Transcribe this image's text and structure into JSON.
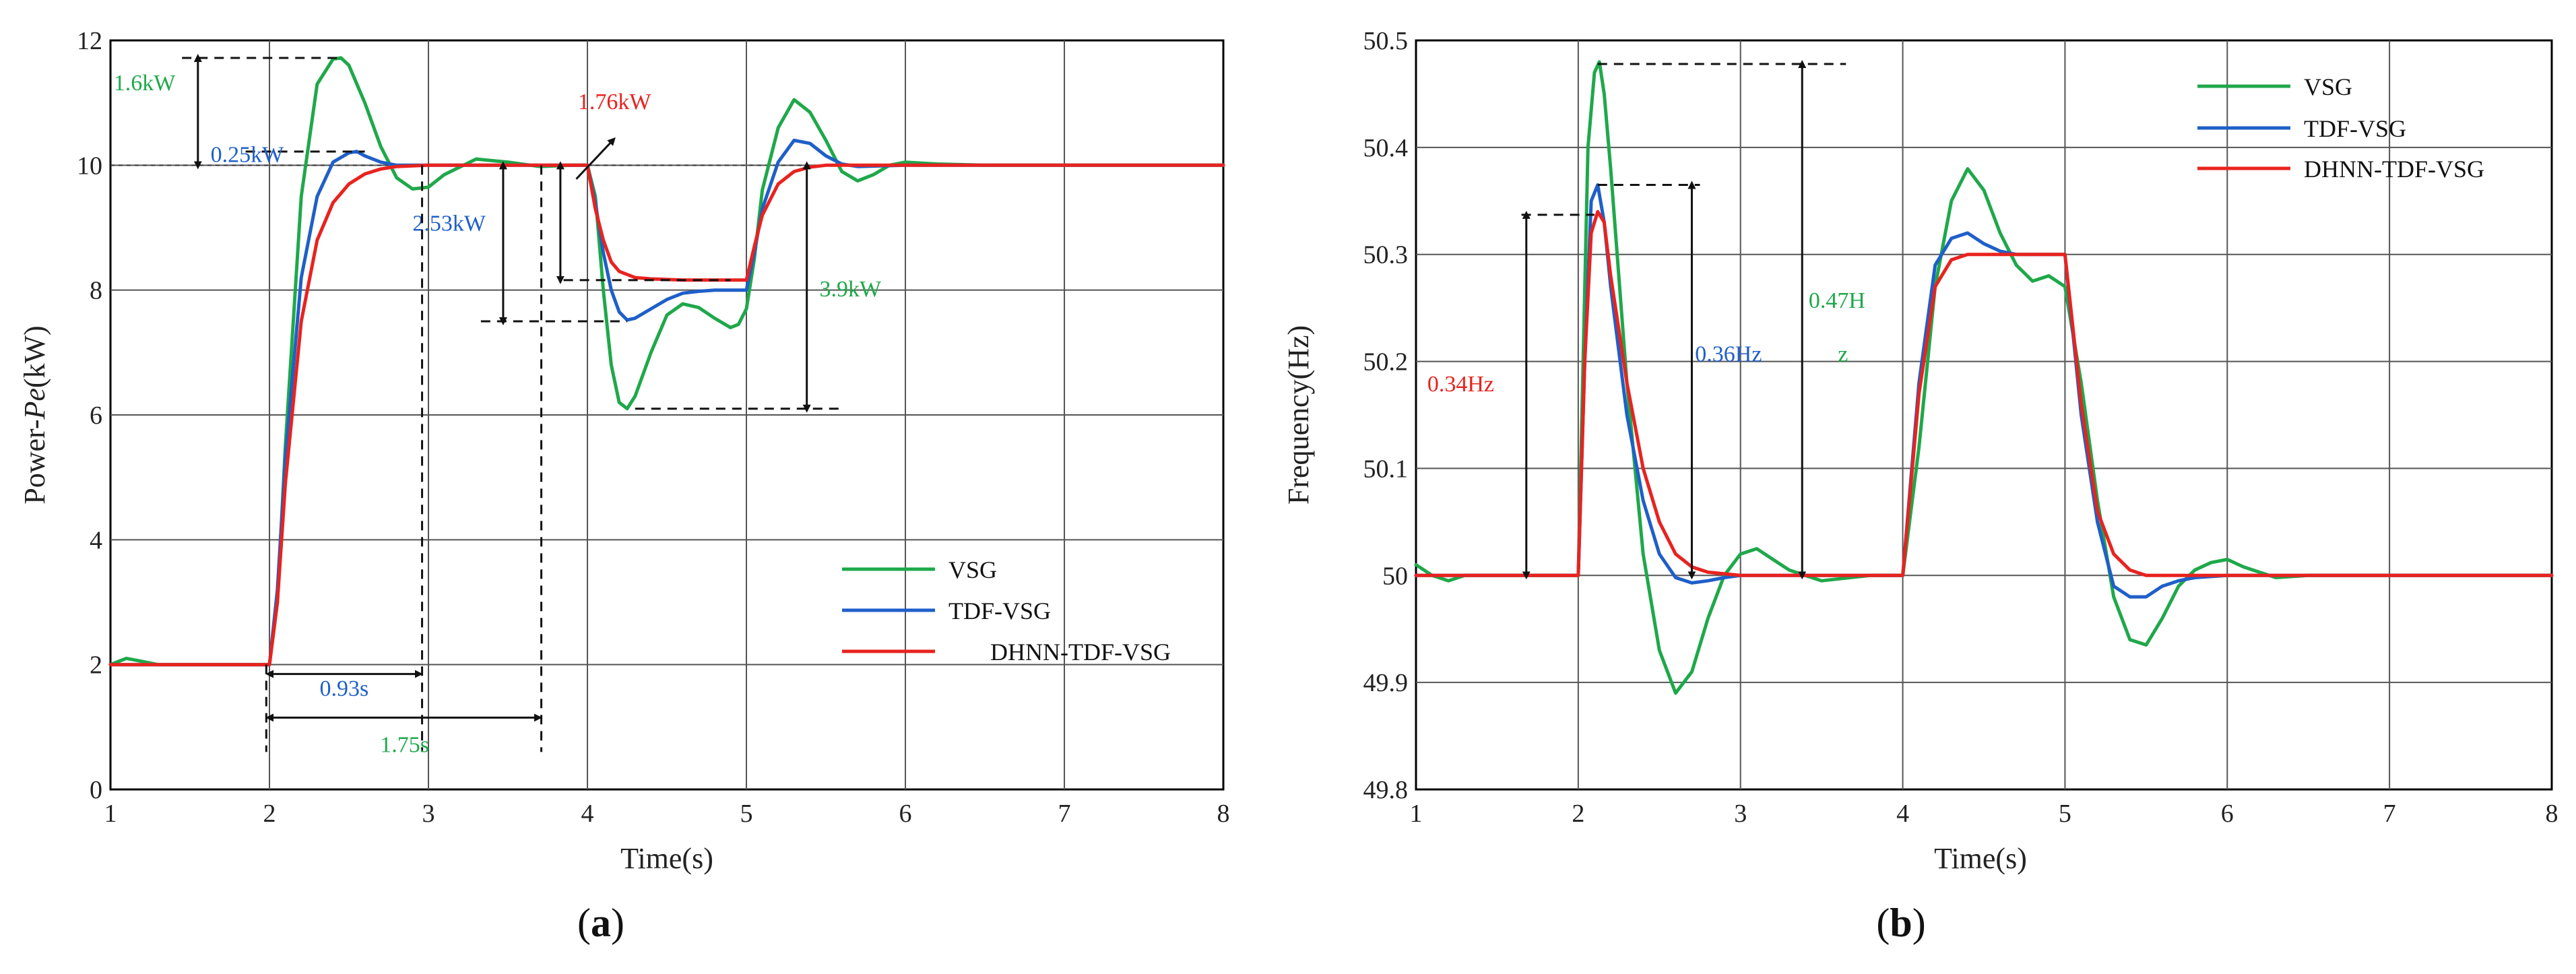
{
  "chart_data": [
    {
      "type": "line",
      "panel_label": "(a)",
      "label_letter": "a",
      "xlabel": "Time(s)",
      "ylabel": "Power-Pe(kW)",
      "ylabel_prefix": "Power-",
      "ylabel_italic": "Pe",
      "ylabel_suffix": "(kW)",
      "xlim": [
        1,
        8
      ],
      "ylim": [
        0,
        12
      ],
      "xticks": [
        1,
        2,
        3,
        4,
        5,
        6,
        7,
        8
      ],
      "yticks": [
        0,
        2,
        4,
        6,
        8,
        10,
        12
      ],
      "grid": true,
      "legend": "bottom-right",
      "series": [
        {
          "name": "VSG",
          "color": "#1fa84a",
          "x": [
            1,
            1.05,
            1.1,
            1.2,
            1.3,
            1.5,
            1.8,
            2,
            2.05,
            2.1,
            2.2,
            2.3,
            2.4,
            2.45,
            2.5,
            2.6,
            2.7,
            2.8,
            2.9,
            3,
            3.1,
            3.3,
            3.5,
            3.7,
            3.9,
            4,
            4.05,
            4.1,
            4.15,
            4.2,
            4.25,
            4.3,
            4.4,
            4.5,
            4.6,
            4.7,
            4.8,
            4.9,
            4.95,
            5,
            5.05,
            5.1,
            5.2,
            5.3,
            5.4,
            5.5,
            5.6,
            5.7,
            5.8,
            5.9,
            6,
            6.2,
            6.5,
            7,
            7.5,
            8
          ],
          "y": [
            2,
            2.05,
            2.1,
            2.05,
            2,
            2,
            2,
            2,
            3,
            5.5,
            9.5,
            11.3,
            11.7,
            11.72,
            11.6,
            11,
            10.3,
            9.8,
            9.62,
            9.65,
            9.85,
            10.1,
            10.05,
            9.98,
            10,
            10,
            9.5,
            8,
            6.8,
            6.2,
            6.1,
            6.3,
            7,
            7.6,
            7.78,
            7.72,
            7.55,
            7.4,
            7.45,
            7.7,
            8.5,
            9.6,
            10.6,
            11.05,
            10.85,
            10.4,
            9.9,
            9.75,
            9.85,
            10,
            10.05,
            10.02,
            10,
            10,
            10,
            10
          ]
        },
        {
          "name": "TDF-VSG",
          "color": "#1f5fc8",
          "x": [
            1,
            1.5,
            2,
            2.05,
            2.1,
            2.2,
            2.3,
            2.4,
            2.5,
            2.55,
            2.6,
            2.7,
            2.8,
            2.9,
            3,
            3.5,
            4,
            4.05,
            4.1,
            4.15,
            4.2,
            4.25,
            4.3,
            4.4,
            4.5,
            4.6,
            4.7,
            4.8,
            4.9,
            5,
            5.05,
            5.1,
            5.2,
            5.3,
            5.4,
            5.5,
            5.6,
            5.7,
            6,
            7,
            8
          ],
          "y": [
            2,
            2,
            2,
            3.2,
            5.3,
            8.2,
            9.5,
            10.05,
            10.2,
            10.22,
            10.15,
            10.05,
            10,
            10,
            10,
            10,
            10,
            9.4,
            8.6,
            8.0,
            7.65,
            7.52,
            7.55,
            7.7,
            7.85,
            7.95,
            7.98,
            8,
            8,
            8,
            8.6,
            9.3,
            10.05,
            10.4,
            10.35,
            10.15,
            10.02,
            9.98,
            10,
            10,
            10
          ]
        },
        {
          "name": "DHNN-TDF-VSG",
          "color": "#e8231f",
          "x": [
            1,
            1.5,
            2,
            2.05,
            2.1,
            2.2,
            2.3,
            2.4,
            2.5,
            2.6,
            2.7,
            2.8,
            3,
            3.5,
            4,
            4.05,
            4.1,
            4.15,
            4.2,
            4.3,
            4.4,
            4.6,
            4.8,
            5,
            5.05,
            5.1,
            5.2,
            5.3,
            5.4,
            5.5,
            6,
            7,
            8
          ],
          "y": [
            2,
            2,
            2,
            3.0,
            4.9,
            7.5,
            8.8,
            9.4,
            9.7,
            9.86,
            9.94,
            9.98,
            10,
            10,
            10,
            9.3,
            8.8,
            8.45,
            8.3,
            8.2,
            8.18,
            8.16,
            8.16,
            8.16,
            8.7,
            9.2,
            9.7,
            9.9,
            9.97,
            10,
            10,
            10,
            10
          ]
        }
      ],
      "annotations": [
        {
          "text": "1.6kW",
          "color": "#1fa84a"
        },
        {
          "text": "0.25kW",
          "color": "#1f5fc8"
        },
        {
          "text": "2.53kW",
          "color": "#1f5fc8"
        },
        {
          "text": "1.76kW",
          "color": "#e8231f"
        },
        {
          "text": "3.9kW",
          "color": "#1fa84a"
        },
        {
          "text": "0.93s",
          "color": "#1f5fc8"
        },
        {
          "text": "1.75s",
          "color": "#1fa84a"
        }
      ]
    },
    {
      "type": "line",
      "panel_label": "(b)",
      "label_letter": "b",
      "xlabel": "Time(s)",
      "ylabel": "Frequency(Hz)",
      "xlim": [
        1,
        8
      ],
      "ylim": [
        49.8,
        50.5
      ],
      "xticks": [
        1,
        2,
        3,
        4,
        5,
        6,
        7,
        8
      ],
      "yticks": [
        49.8,
        49.9,
        50,
        50.1,
        50.2,
        50.3,
        50.4,
        50.5
      ],
      "grid": true,
      "legend": "top-right",
      "series": [
        {
          "name": "VSG",
          "color": "#1fa84a",
          "x": [
            1,
            1.1,
            1.2,
            1.3,
            1.5,
            2,
            2.03,
            2.06,
            2.1,
            2.13,
            2.16,
            2.2,
            2.3,
            2.4,
            2.5,
            2.6,
            2.7,
            2.8,
            2.9,
            3,
            3.1,
            3.2,
            3.3,
            3.5,
            3.8,
            4,
            4.1,
            4.2,
            4.3,
            4.4,
            4.5,
            4.6,
            4.7,
            4.8,
            4.9,
            5,
            5.1,
            5.2,
            5.3,
            5.4,
            5.5,
            5.6,
            5.7,
            5.8,
            5.9,
            6,
            6.1,
            6.3,
            6.5,
            7,
            8
          ],
          "y": [
            50.01,
            50,
            49.995,
            50,
            50,
            50,
            50.2,
            50.4,
            50.47,
            50.48,
            50.45,
            50.38,
            50.18,
            50.02,
            49.93,
            49.89,
            49.91,
            49.96,
            50.0,
            50.02,
            50.025,
            50.015,
            50.005,
            49.995,
            50,
            50,
            50.12,
            50.27,
            50.35,
            50.38,
            50.36,
            50.32,
            50.29,
            50.275,
            50.28,
            50.27,
            50.18,
            50.07,
            49.98,
            49.94,
            49.935,
            49.96,
            49.99,
            50.005,
            50.012,
            50.015,
            50.008,
            49.998,
            50,
            50,
            50
          ]
        },
        {
          "name": "TDF-VSG",
          "color": "#1f5fc8",
          "x": [
            1,
            1.5,
            2,
            2.04,
            2.08,
            2.12,
            2.16,
            2.2,
            2.3,
            2.4,
            2.5,
            2.6,
            2.7,
            2.8,
            2.9,
            3,
            3.2,
            3.5,
            4,
            4.1,
            4.2,
            4.3,
            4.4,
            4.5,
            4.6,
            4.7,
            4.8,
            5,
            5.1,
            5.2,
            5.3,
            5.4,
            5.5,
            5.6,
            5.7,
            5.8,
            6,
            7,
            8
          ],
          "y": [
            50,
            50,
            50,
            50.2,
            50.35,
            50.365,
            50.33,
            50.27,
            50.15,
            50.07,
            50.02,
            49.998,
            49.993,
            49.995,
            49.998,
            50,
            50,
            50,
            50,
            50.18,
            50.29,
            50.315,
            50.32,
            50.31,
            50.303,
            50.3,
            50.3,
            50.3,
            50.15,
            50.05,
            49.99,
            49.98,
            49.98,
            49.99,
            49.995,
            49.998,
            50,
            50,
            50
          ]
        },
        {
          "name": "DHNN-TDF-VSG",
          "color": "#e8231f",
          "x": [
            1,
            1.5,
            2,
            2.04,
            2.08,
            2.12,
            2.16,
            2.2,
            2.3,
            2.4,
            2.5,
            2.6,
            2.7,
            2.8,
            3,
            3.5,
            4,
            4.1,
            4.2,
            4.3,
            4.4,
            4.5,
            4.6,
            4.8,
            5,
            5.1,
            5.2,
            5.3,
            5.4,
            5.5,
            6,
            7,
            8
          ],
          "y": [
            50,
            50,
            50,
            50.2,
            50.32,
            50.34,
            50.33,
            50.28,
            50.18,
            50.1,
            50.05,
            50.02,
            50.008,
            50.003,
            50,
            50,
            50,
            50.17,
            50.27,
            50.295,
            50.3,
            50.3,
            50.3,
            50.3,
            50.3,
            50.16,
            50.06,
            50.02,
            50.005,
            50,
            50,
            50,
            50
          ]
        }
      ],
      "annotations": [
        {
          "text": "0.34Hz",
          "color": "#e8231f"
        },
        {
          "text": "0.36Hz",
          "color": "#1f5fc8"
        },
        {
          "text": "0.47H",
          "color": "#1fa84a"
        },
        {
          "text": "z",
          "color": "#1fa84a"
        }
      ]
    }
  ]
}
